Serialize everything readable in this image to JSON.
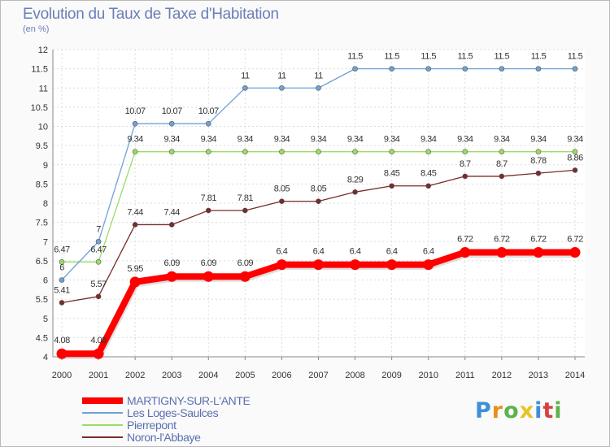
{
  "title": "Evolution du Taux de Taxe d'Habitation",
  "subtitle": "(en %)",
  "logo_text": "Proxiti",
  "chart_data": {
    "type": "line",
    "title": "Evolution du Taux de Taxe d'Habitation",
    "ylabel": "(en %)",
    "xlabel": "",
    "ylim": [
      4,
      12
    ],
    "yticks": [
      4,
      4.5,
      5,
      5.5,
      6,
      6.5,
      7,
      7.5,
      8,
      8.5,
      9,
      9.5,
      10,
      10.5,
      11,
      11.5,
      12
    ],
    "ytick_labels": [
      "4",
      "4.5",
      "5",
      "5.5",
      "6",
      "6.5",
      "7",
      "7.5",
      "8",
      "8.5",
      "9",
      "9.5",
      "10",
      "10.5",
      "11",
      "11.5",
      "12"
    ],
    "categories": [
      "2000",
      "2001",
      "2002",
      "2003",
      "2004",
      "2005",
      "2006",
      "2007",
      "2008",
      "2009",
      "2010",
      "2011",
      "2012",
      "2013",
      "2014"
    ],
    "grid": true,
    "series": [
      {
        "name": "MARTIGNY-SUR-L'ANTE",
        "color": "#ff0000",
        "values": [
          4.08,
          4.08,
          5.95,
          6.09,
          6.09,
          6.09,
          6.4,
          6.4,
          6.4,
          6.4,
          6.4,
          6.72,
          6.72,
          6.72,
          6.72
        ],
        "labels": [
          "4.08",
          "4.08",
          "5.95",
          "6.09",
          "6.09",
          "6.09",
          "6.4",
          "6.4",
          "6.4",
          "6.4",
          "6.4",
          "6.72",
          "6.72",
          "6.72",
          "6.72"
        ]
      },
      {
        "name": "Les Loges-Saulces",
        "color": "#6fa2d6",
        "values": [
          6,
          7,
          10.07,
          10.07,
          10.07,
          11,
          11,
          11,
          11.5,
          11.5,
          11.5,
          11.5,
          11.5,
          11.5,
          11.5
        ],
        "labels": [
          "6",
          "7",
          "10.07",
          "10.07",
          "10.07",
          "11",
          "11",
          "11",
          "11.5",
          "11.5",
          "11.5",
          "11.5",
          "11.5",
          "11.5",
          "11.5"
        ]
      },
      {
        "name": "Pierrepont",
        "color": "#99dd66",
        "values": [
          6.47,
          6.47,
          9.34,
          9.34,
          9.34,
          9.34,
          9.34,
          9.34,
          9.34,
          9.34,
          9.34,
          9.34,
          9.34,
          9.34,
          9.34
        ],
        "labels": [
          "6.47",
          "6.47",
          "9.34",
          "9.34",
          "9.34",
          "9.34",
          "9.34",
          "9.34",
          "9.34",
          "9.34",
          "9.34",
          "9.34",
          "9.34",
          "9.34",
          "9.34"
        ]
      },
      {
        "name": "Noron-l'Abbaye",
        "color": "#7a2b2b",
        "values": [
          5.41,
          5.57,
          7.44,
          7.44,
          7.81,
          7.81,
          8.05,
          8.05,
          8.29,
          8.45,
          8.45,
          8.7,
          8.7,
          8.78,
          8.86
        ],
        "labels": [
          "5.41",
          "5.57",
          "7.44",
          "7.44",
          "7.81",
          "7.81",
          "8.05",
          "8.05",
          "8.29",
          "8.45",
          "8.45",
          "8.7",
          "8.7",
          "8.78",
          "8.86"
        ]
      }
    ],
    "legend_position": "bottom-left"
  }
}
